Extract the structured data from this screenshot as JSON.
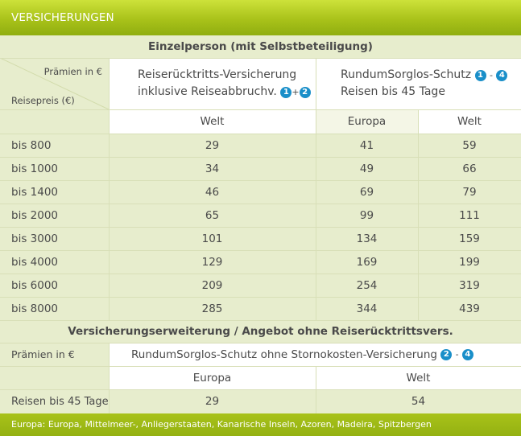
{
  "header": {
    "title": "VERSICHERUNGEN"
  },
  "section1": {
    "title": "Einzelperson (mit Selbstbeteiligung)",
    "corner_top": "Prämien in €",
    "corner_bottom": "Reisepreis (€)",
    "col1_line1": "Reiserücktritts-Versicherung",
    "col1_line2": "inklusive Reiseabbruchv.",
    "col1_badge_a": "1",
    "col1_badge_sep": "+",
    "col1_badge_b": "2",
    "col2_line1": "RundumSorglos-Schutz",
    "col2_line2": "Reisen bis 45 Tage",
    "col2_badge_a": "1",
    "col2_badge_sep": "-",
    "col2_badge_b": "4",
    "sub_welt1": "Welt",
    "sub_europa": "Europa",
    "sub_welt2": "Welt",
    "rows": [
      {
        "label": "bis 800",
        "c1": "29",
        "c2": "41",
        "c3": "59"
      },
      {
        "label": "bis 1000",
        "c1": "34",
        "c2": "49",
        "c3": "66"
      },
      {
        "label": "bis 1400",
        "c1": "46",
        "c2": "69",
        "c3": "79"
      },
      {
        "label": "bis 2000",
        "c1": "65",
        "c2": "99",
        "c3": "111"
      },
      {
        "label": "bis 3000",
        "c1": "101",
        "c2": "134",
        "c3": "159"
      },
      {
        "label": "bis 4000",
        "c1": "129",
        "c2": "169",
        "c3": "199"
      },
      {
        "label": "bis 6000",
        "c1": "209",
        "c2": "254",
        "c3": "319"
      },
      {
        "label": "bis 8000",
        "c1": "285",
        "c2": "344",
        "c3": "439"
      }
    ]
  },
  "section2": {
    "title": "Versicherungserweiterung / Angebot ohne Reiserücktrittsvers.",
    "praemien_label": "Prämien in €",
    "product": "RundumSorglos-Schutz ohne Stornokosten-Versicherung",
    "badge_a": "2",
    "badge_sep": "-",
    "badge_b": "4",
    "col_europa": "Europa",
    "col_welt": "Welt",
    "row_label": "Reisen bis 45 Tage",
    "val_europa": "29",
    "val_welt": "54"
  },
  "footer": {
    "text": "Europa: Europa, Mittelmeer-, Anliegerstaaten, Kanarische Inseln, Azoren, Madeira, Spitzbergen"
  },
  "colors": {
    "header_green": "#a9c21a",
    "row_green": "#e7edcd",
    "badge_blue": "#1a8fc9"
  }
}
